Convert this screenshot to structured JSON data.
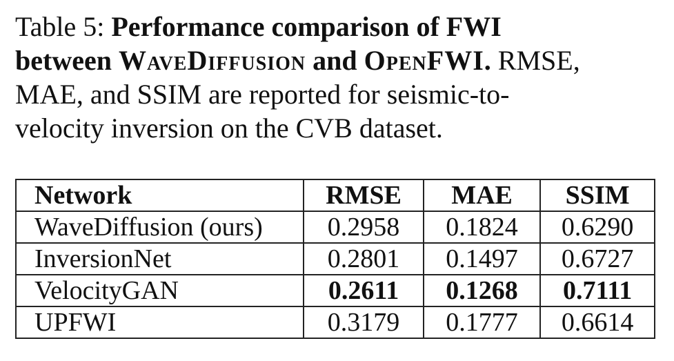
{
  "caption": {
    "label": "Table 5: ",
    "title_pre": "Performance comparison of FWI between ",
    "method_a": "WaveDiffusion",
    "title_mid": " and ",
    "method_b": "OpenFWI",
    "title_end": ".",
    "description": " RMSE, MAE, and SSIM are reported for seismic-to-velocity inversion on the CVB dataset."
  },
  "table": {
    "headers": [
      "Network",
      "RMSE",
      "MAE",
      "SSIM"
    ],
    "rows": [
      {
        "network": "WaveDiffusion (ours)",
        "rmse": "0.2958",
        "mae": "0.1824",
        "ssim": "0.6290"
      },
      {
        "network": "InversionNet",
        "rmse": "0.2801",
        "mae": "0.1497",
        "ssim": "0.6727"
      },
      {
        "network": "VelocityGAN",
        "rmse": "0.2611",
        "mae": "0.1268",
        "ssim": "0.7111",
        "best": true
      },
      {
        "network": "UPFWI",
        "rmse": "0.3179",
        "mae": "0.1777",
        "ssim": "0.6614"
      }
    ]
  }
}
